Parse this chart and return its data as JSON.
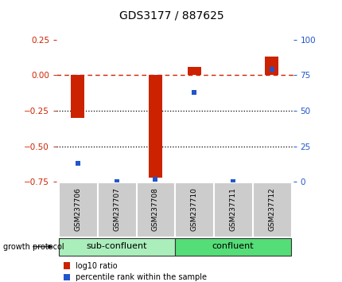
{
  "title": "GDS3177 / 887625",
  "samples": [
    "GSM237706",
    "GSM237707",
    "GSM237708",
    "GSM237710",
    "GSM237711",
    "GSM237712"
  ],
  "log10_ratio": [
    -0.3,
    0.0,
    -0.72,
    0.055,
    0.0,
    0.13
  ],
  "percentile_rank": [
    13,
    0,
    2,
    63,
    0,
    79
  ],
  "ylim_left": [
    -0.75,
    0.25
  ],
  "ylim_right": [
    0,
    100
  ],
  "left_yticks": [
    -0.75,
    -0.5,
    -0.25,
    0.0,
    0.25
  ],
  "right_yticks": [
    0,
    25,
    50,
    75,
    100
  ],
  "bar_color": "#cc2200",
  "dot_color": "#2255cc",
  "dashed_line_color": "#cc2200",
  "dotted_line_color": "#000000",
  "group_labels": [
    "sub-confluent",
    "confluent"
  ],
  "group_ranges": [
    [
      0,
      3
    ],
    [
      3,
      6
    ]
  ],
  "group_colors": [
    "#aaeebb",
    "#55dd77"
  ],
  "protocol_label": "growth protocol",
  "legend_bar_label": "log10 ratio",
  "legend_dot_label": "percentile rank within the sample",
  "bg_color": "#ffffff",
  "plot_bg": "#ffffff",
  "tick_bg": "#cccccc",
  "bar_width": 0.35
}
